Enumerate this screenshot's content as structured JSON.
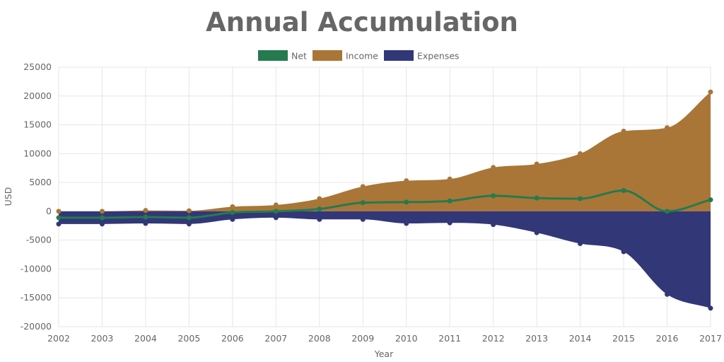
{
  "chart_data": {
    "type": "area",
    "title": "Annual Accumulation",
    "xlabel": "Year",
    "ylabel": "USD",
    "ylim": [
      -20000,
      25000
    ],
    "yticks": [
      25000,
      20000,
      15000,
      10000,
      5000,
      0,
      -5000,
      -10000,
      -15000,
      -20000
    ],
    "x": [
      2002,
      2003,
      2004,
      2005,
      2006,
      2007,
      2008,
      2009,
      2010,
      2011,
      2012,
      2013,
      2014,
      2015,
      2016,
      2017
    ],
    "grid": true,
    "legend_position": "top-center",
    "series": [
      {
        "name": "Net",
        "kind": "line",
        "color": "#257a4f",
        "values": [
          -1100,
          -1100,
          -1000,
          -1100,
          -200,
          0,
          400,
          1500,
          1600,
          1800,
          2700,
          2300,
          2200,
          3600,
          0,
          2000
        ]
      },
      {
        "name": "Income",
        "kind": "area",
        "color": "#a97637",
        "values": [
          0,
          0,
          150,
          100,
          800,
          1100,
          2200,
          4300,
          5300,
          5600,
          7600,
          8200,
          10000,
          13900,
          14500,
          20700
        ]
      },
      {
        "name": "Expenses",
        "kind": "area",
        "color": "#323778",
        "values": [
          -2200,
          -2200,
          -2100,
          -2200,
          -1400,
          -1100,
          -1400,
          -1400,
          -2100,
          -2000,
          -2300,
          -3700,
          -5600,
          -7000,
          -14400,
          -16800
        ]
      }
    ]
  }
}
